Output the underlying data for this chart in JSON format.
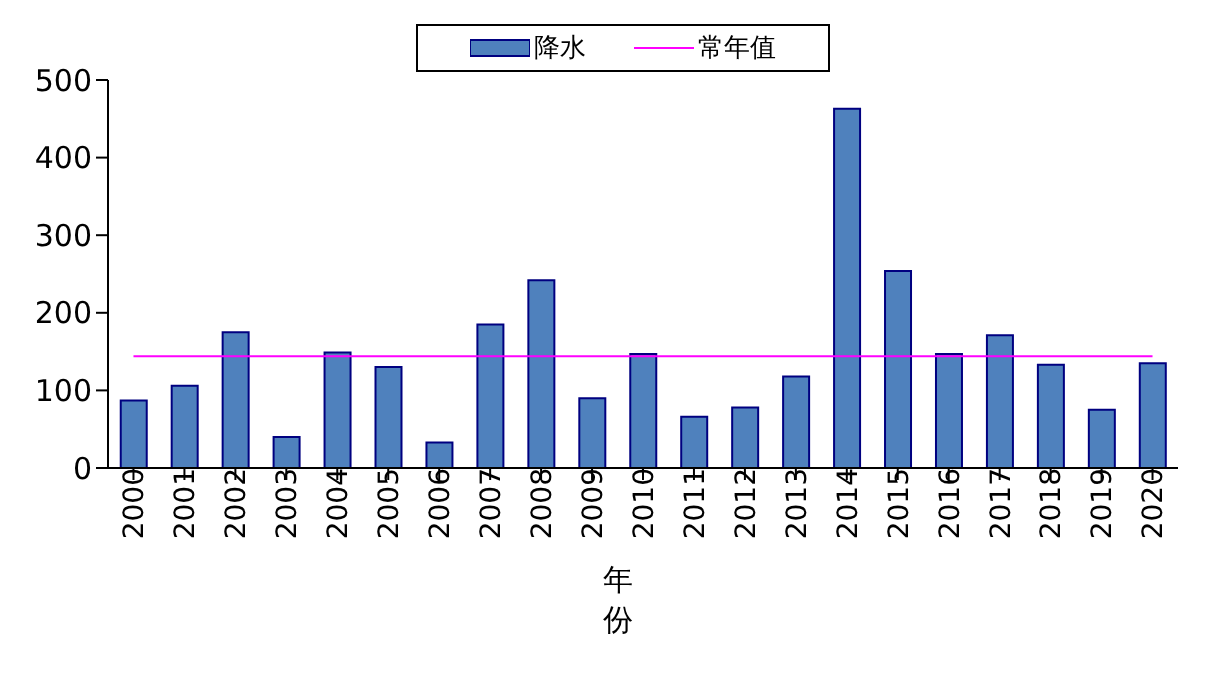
{
  "chart_data": {
    "type": "bar",
    "xlabel": "年份",
    "categories": [
      "2000",
      "2001",
      "2002",
      "2003",
      "2004",
      "2005",
      "2006",
      "2007",
      "2008",
      "2009",
      "2010",
      "2011",
      "2012",
      "2013",
      "2014",
      "2015",
      "2016",
      "2017",
      "2018",
      "2019",
      "2020"
    ],
    "series": [
      {
        "name": "降水",
        "color": "#4f81bd",
        "values": [
          87,
          106,
          175,
          40,
          149,
          130,
          33,
          185,
          242,
          90,
          147,
          66,
          78,
          118,
          463,
          254,
          147,
          171,
          133,
          75,
          135
        ]
      },
      {
        "name": "常年值",
        "type": "line",
        "color": "#ff00ff",
        "values": [
          144,
          144,
          144,
          144,
          144,
          144,
          144,
          144,
          144,
          144,
          144,
          144,
          144,
          144,
          144,
          144,
          144,
          144,
          144,
          144,
          144
        ]
      }
    ],
    "ylim": [
      0,
      500
    ],
    "yticks": [
      0,
      100,
      200,
      300,
      400,
      500
    ],
    "grid": false,
    "legend": "top",
    "marker": "none"
  }
}
